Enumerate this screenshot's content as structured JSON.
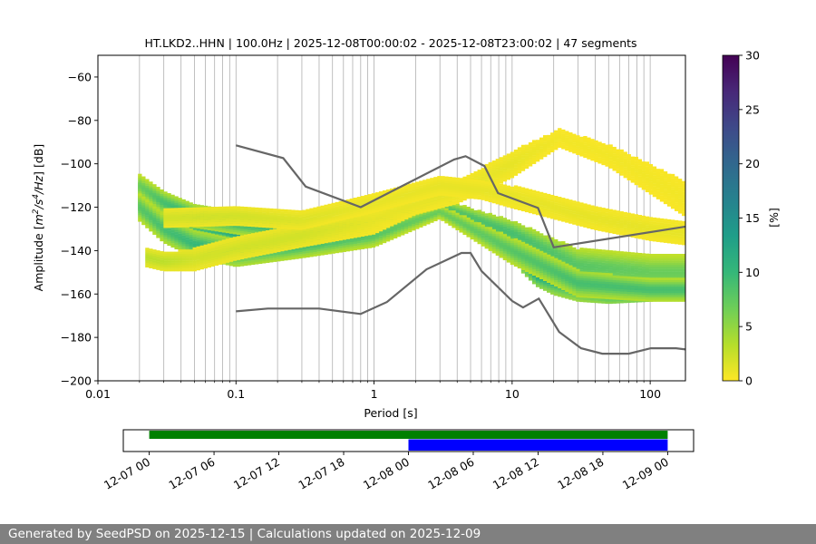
{
  "chart_data": [
    {
      "type": "heatmap",
      "title": "HT.LKD2..HHN | 100.0Hz | 2025-12-08T00:00:02 - 2025-12-08T23:00:02 | 47 segments",
      "xlabel": "Period [s]",
      "ylabel_prefix": "Amplitude [",
      "ylabel_math": "m2/s4/Hz",
      "ylabel_suffix": "] [dB]",
      "x_scale": "log",
      "xlim": [
        0.01,
        180
      ],
      "ylim": [
        -200,
        -50
      ],
      "x_ticks": [
        {
          "value": 0.01,
          "label": "0.01"
        },
        {
          "value": 0.1,
          "label": "0.1"
        },
        {
          "value": 1,
          "label": "1"
        },
        {
          "value": 10,
          "label": "10"
        },
        {
          "value": 100,
          "label": "100"
        }
      ],
      "y_ticks": [
        {
          "value": -60,
          "label": "−60"
        },
        {
          "value": -80,
          "label": "−80"
        },
        {
          "value": -100,
          "label": "−100"
        },
        {
          "value": -120,
          "label": "−120"
        },
        {
          "value": -140,
          "label": "−140"
        },
        {
          "value": -160,
          "label": "−160"
        },
        {
          "value": -180,
          "label": "−180"
        },
        {
          "value": -200,
          "label": "−200"
        }
      ],
      "grid": "vertical, log minor",
      "colorbar": {
        "label": "[%]",
        "range": [
          0,
          30
        ],
        "colormap": "viridis_r",
        "ticks": [
          {
            "value": 0,
            "label": "0"
          },
          {
            "value": 5,
            "label": "5"
          },
          {
            "value": 10,
            "label": "10"
          },
          {
            "value": 15,
            "label": "15"
          },
          {
            "value": 20,
            "label": "20"
          },
          {
            "value": 25,
            "label": "25"
          },
          {
            "value": 30,
            "label": "30"
          }
        ]
      },
      "noise_models": {
        "color": "#666666",
        "series": [
          {
            "x": [
              0.1,
              0.22,
              0.32,
              0.8,
              3.8,
              4.6,
              6.3,
              7.9,
              15.4,
              20,
              354
            ],
            "y": [
              -91.5,
              -97.4,
              -110.5,
              -120,
              -98,
              -96.5,
              -101,
              -113.5,
              -120.3,
              -138.5,
              -126
            ]
          },
          {
            "x": [
              0.1,
              0.17,
              0.4,
              0.8,
              1.24,
              2.4,
              4.3,
              5,
              6,
              10,
              12,
              15.6,
              21.9,
              31.6,
              45,
              70,
              101,
              154,
              328
            ],
            "y": [
              -168,
              -166.7,
              -166.7,
              -169.2,
              -163.7,
              -148.6,
              -141.1,
              -141.1,
              -149.4,
              -163.2,
              -166.2,
              -162.1,
              -177.5,
              -185,
              -187.5,
              -187.5,
              -185,
              -185,
              -187.5
            ]
          }
        ]
      },
      "psd_bands": [
        {
          "p": [
            0.02,
            0.03,
            0.05,
            0.1,
            0.3,
            0.6,
            1,
            2,
            3,
            3.5,
            4,
            6,
            8,
            10,
            12,
            15,
            20,
            30,
            50,
            100,
            180
          ],
          "c": [
            -115,
            -121,
            -126,
            -130,
            -133,
            -131,
            -129,
            -125,
            -120,
            -119,
            -121,
            -128,
            -131,
            -137,
            -144,
            -150,
            -153,
            -156,
            -158,
            -157,
            -156
          ],
          "s": [
            6,
            6,
            6,
            5,
            4,
            4,
            4,
            3,
            2,
            2,
            2,
            3,
            3,
            5,
            6,
            6,
            7,
            7,
            6,
            6,
            6
          ],
          "v": [
            10,
            12,
            14,
            18,
            24,
            28,
            30,
            30,
            30,
            30,
            30,
            28,
            24,
            18,
            14,
            14,
            12,
            12,
            14,
            16,
            14
          ]
        },
        {
          "p": [
            0.02,
            0.03,
            0.05,
            0.1,
            0.3,
            1,
            3,
            10,
            30,
            100,
            180
          ],
          "c": [
            -110,
            -118,
            -124,
            -127,
            -131,
            -128,
            -119,
            -132,
            -147,
            -150,
            -150
          ],
          "s": [
            5,
            5,
            5,
            5,
            5,
            5,
            3,
            6,
            8,
            8,
            8
          ],
          "v": [
            7,
            9,
            10,
            10,
            9,
            9,
            8,
            9,
            8,
            7,
            7
          ]
        },
        {
          "p": [
            0.02,
            0.03,
            0.05,
            0.1,
            0.3,
            1,
            3,
            10,
            30,
            100,
            180
          ],
          "c": [
            -120,
            -130,
            -137,
            -141,
            -138,
            -133,
            -122,
            -140,
            -155,
            -158,
            -158
          ],
          "s": [
            6,
            6,
            6,
            6,
            5,
            5,
            3,
            6,
            6,
            5,
            5
          ],
          "v": [
            8,
            9,
            10,
            10,
            9,
            8,
            7,
            8,
            9,
            9,
            9
          ]
        },
        {
          "p": [
            0.022,
            0.03,
            0.05,
            0.1,
            0.3,
            1,
            2,
            4,
            10,
            22,
            50,
            180
          ],
          "c": [
            -143,
            -145,
            -144,
            -139,
            -133,
            -126,
            -118,
            -113,
            -100,
            -88,
            -96,
            -116
          ],
          "s": [
            4,
            4,
            5,
            5,
            5,
            6,
            5,
            5,
            6,
            4,
            5,
            8
          ],
          "v": [
            3,
            3,
            2,
            2,
            2,
            1,
            1,
            1,
            1,
            0.5,
            0.5,
            0.5
          ]
        },
        {
          "p": [
            0.03,
            0.1,
            0.3,
            1,
            3,
            6,
            10,
            20,
            40,
            100,
            180
          ],
          "c": [
            -125,
            -124,
            -126,
            -118,
            -110,
            -112,
            -115,
            -120,
            -125,
            -130,
            -132
          ],
          "s": [
            4,
            4,
            4,
            4,
            4,
            4,
            5,
            5,
            5,
            5,
            5
          ],
          "v": [
            2,
            2,
            1.5,
            1,
            1,
            1,
            1,
            1,
            1,
            1,
            1
          ]
        }
      ]
    },
    {
      "type": "timeline",
      "x_ticks": [
        "12-07 00",
        "12-07 06",
        "12-07 12",
        "12-07 18",
        "12-08 00",
        "12-08 06",
        "12-08 12",
        "12-08 18",
        "12-09 00"
      ],
      "xlim_hours": [
        -2.4,
        50.4
      ],
      "bars": [
        {
          "start_hours": 0,
          "end_hours": 48,
          "color": "#008000"
        },
        {
          "start_hours": 24,
          "end_hours": 48,
          "color": "#0000ff"
        }
      ]
    }
  ],
  "footer": {
    "text": "Generated by SeedPSD on 2025-12-15 | Calculations updated on 2025-12-09"
  }
}
